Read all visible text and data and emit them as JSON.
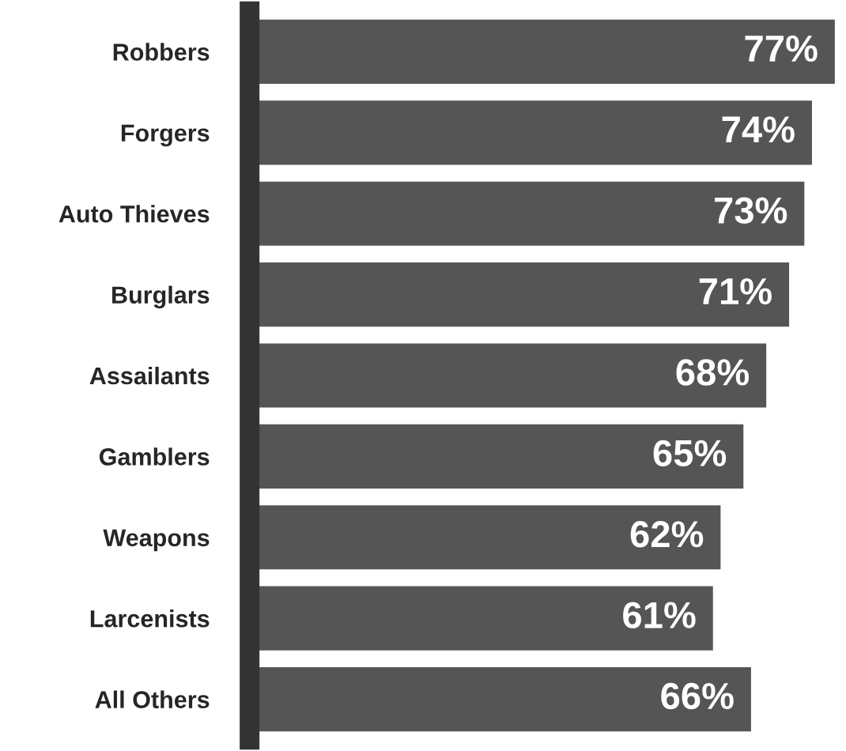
{
  "chart_data": {
    "type": "bar",
    "orientation": "horizontal",
    "categories": [
      "Robbers",
      "Forgers",
      "Auto Thieves",
      "Burglars",
      "Assailants",
      "Gamblers",
      "Weapons",
      "Larcenists",
      "All Others"
    ],
    "values": [
      77,
      74,
      73,
      71,
      68,
      65,
      62,
      61,
      66
    ],
    "value_labels": [
      "77%",
      "74%",
      "73%",
      "71%",
      "68%",
      "65%",
      "62%",
      "61%",
      "66%"
    ],
    "color": "#555555",
    "tick_labels": "y",
    "grid": false,
    "legend": false
  }
}
